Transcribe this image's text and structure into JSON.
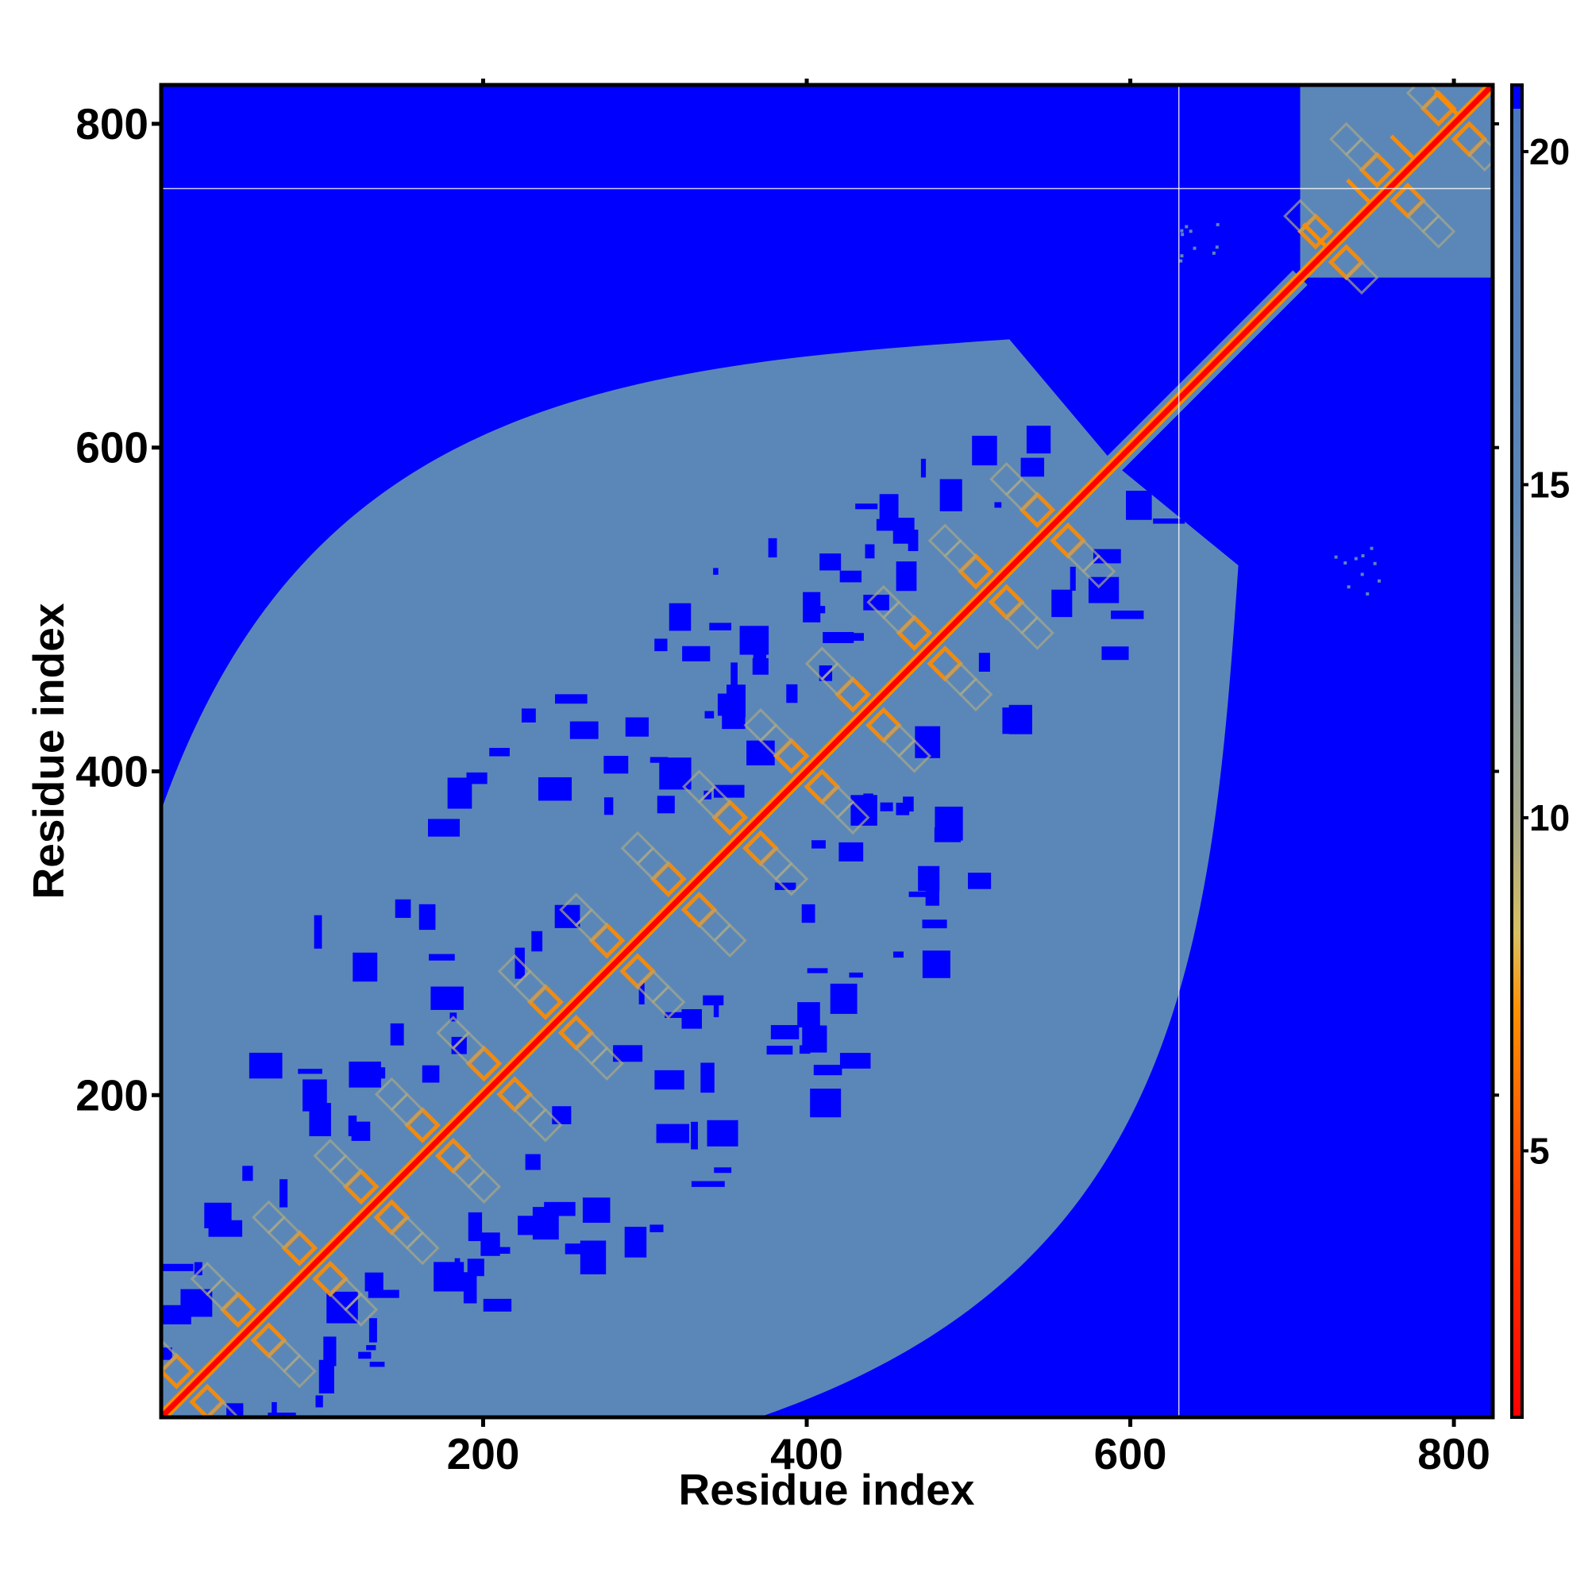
{
  "chart_data": {
    "type": "heatmap",
    "title": "",
    "xlabel": "Residue index",
    "ylabel": "Residue index",
    "xlim": [
      1,
      824
    ],
    "ylim": [
      1,
      824
    ],
    "x_ticks": [
      200,
      400,
      600,
      800
    ],
    "y_ticks": [
      200,
      400,
      600,
      800
    ],
    "colorbar": {
      "range": [
        1,
        21
      ],
      "ticks": [
        5,
        10,
        15,
        20
      ],
      "colors": {
        "near": "#ff0000",
        "mid": "#ff8c00",
        "transition": "#a8a888",
        "far": "#5b87b8",
        "max": "#0000ff"
      }
    },
    "matrix_features": {
      "background_value": 21,
      "diagonal": {
        "start": 1,
        "end": 824,
        "value": 1
      },
      "main_block": {
        "from": 1,
        "to": 590,
        "value": 16
      },
      "small_block": {
        "from": 705,
        "to": 824,
        "value": 16
      },
      "linker_segment": {
        "from": 590,
        "to": 705
      },
      "gap_line_x": 630,
      "gap_line_y": 760,
      "isolated_contacts": [
        {
          "x": 640,
          "y": 730
        },
        {
          "x": 740,
          "y": 525
        }
      ],
      "motif_period": 38
    }
  }
}
